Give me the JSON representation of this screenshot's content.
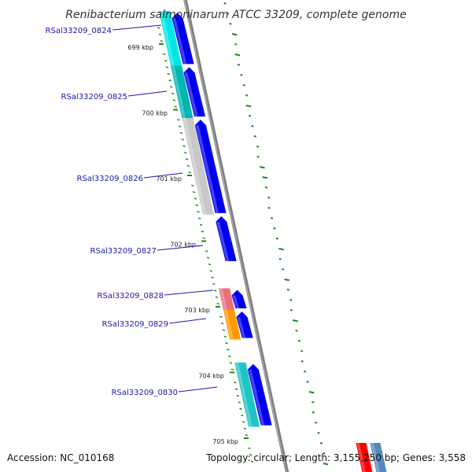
{
  "map": {
    "title": "Renibacterium salmoninarum ATCC 33209, complete genome",
    "accession": "Accession: NC_010168",
    "topology": "Topology: circular; Length: 3,155,250 bp; Genes: 3,558"
  },
  "scale": {
    "ticks": [
      {
        "kbp": 699,
        "label": "699 kbp"
      },
      {
        "kbp": 700,
        "label": "700 kbp"
      },
      {
        "kbp": 701,
        "label": "701 kbp"
      },
      {
        "kbp": 702,
        "label": "702 kbp"
      },
      {
        "kbp": 703,
        "label": "703 kbp"
      },
      {
        "kbp": 704,
        "label": "704 kbp"
      },
      {
        "kbp": 705,
        "label": "705 kbp"
      }
    ]
  },
  "genes": [
    {
      "id": "RSal33209_0824",
      "label": "RSal33209_0824",
      "start_kbp": 698.45,
      "end_kbp": 699.28,
      "category_color": "#00e6e6"
    },
    {
      "id": "RSal33209_0825",
      "label": "RSal33209_0825",
      "start_kbp": 699.28,
      "end_kbp": 700.08,
      "category_color": "#00b5b5"
    },
    {
      "id": "RSal33209_0826",
      "label": "RSal33209_0826",
      "start_kbp": 700.08,
      "end_kbp": 701.55,
      "category_color": "#c8c8c8"
    },
    {
      "id": "RSal33209_0827",
      "label": "RSal33209_0827",
      "start_kbp": 701.55,
      "end_kbp": 702.28,
      "category_color": null
    },
    {
      "id": "RSal33209_0828",
      "label": "RSal33209_0828",
      "start_kbp": 702.67,
      "end_kbp": 703.0,
      "category_color": "#e8707a"
    },
    {
      "id": "RSal33209_0829",
      "label": "RSal33209_0829",
      "start_kbp": 703.0,
      "end_kbp": 703.45,
      "category_color": "#ff9900"
    },
    {
      "id": "RSal33209_0830",
      "label": "RSal33209_0830",
      "start_kbp": 703.8,
      "end_kbp": 704.78,
      "category_color": "#1fc4c4"
    },
    {
      "id": "RSal33209_0831",
      "label": "",
      "start_kbp": 705.0,
      "end_kbp": 705.45,
      "category_color": "#ff0000"
    },
    {
      "id": "RSal33209_0832",
      "label": "",
      "start_kbp": 705.0,
      "end_kbp": 705.45,
      "category_color": "#5588bb"
    }
  ],
  "colors": {
    "cds": "#0000ee",
    "backbone": "#808080",
    "gc_skew": "#1a8a1a"
  }
}
